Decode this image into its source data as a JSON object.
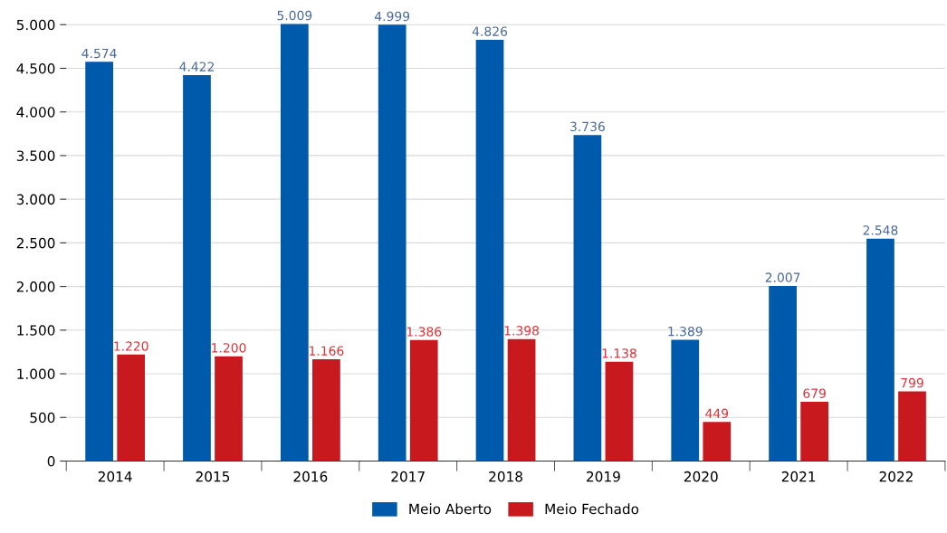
{
  "chart_data": {
    "type": "bar",
    "categories": [
      "2014",
      "2015",
      "2016",
      "2017",
      "2018",
      "2019",
      "2020",
      "2021",
      "2022"
    ],
    "series": [
      {
        "name": "Meio Aberto",
        "color": "#005aab",
        "values": [
          4574,
          4422,
          5009,
          4999,
          4826,
          3736,
          1389,
          2007,
          2548
        ],
        "value_labels": [
          "4.574",
          "4.422",
          "5.009",
          "4.999",
          "4.826",
          "3.736",
          "1.389",
          "2.007",
          "2.548"
        ]
      },
      {
        "name": "Meio Fechado",
        "color": "#c8191e",
        "values": [
          1220,
          1200,
          1166,
          1386,
          1398,
          1138,
          449,
          679,
          799
        ],
        "value_labels": [
          "1.220",
          "1.200",
          "1.166",
          "1.386",
          "1.398",
          "1.138",
          "449",
          "679",
          "799"
        ]
      }
    ],
    "ylim": [
      0,
      5020
    ],
    "yticks": [
      {
        "value": 0,
        "label": "0"
      },
      {
        "value": 500,
        "label": "500"
      },
      {
        "value": 1000,
        "label": "1.000"
      },
      {
        "value": 1500,
        "label": "1.500"
      },
      {
        "value": 2000,
        "label": "2.000"
      },
      {
        "value": 2500,
        "label": "2.500"
      },
      {
        "value": 3000,
        "label": "3.000"
      },
      {
        "value": 3500,
        "label": "3.500"
      },
      {
        "value": 4000,
        "label": "4.000"
      },
      {
        "value": 4500,
        "label": "4.500"
      },
      {
        "value": 5000,
        "label": "5.000"
      }
    ],
    "grid": "y",
    "legend": "bottom"
  }
}
